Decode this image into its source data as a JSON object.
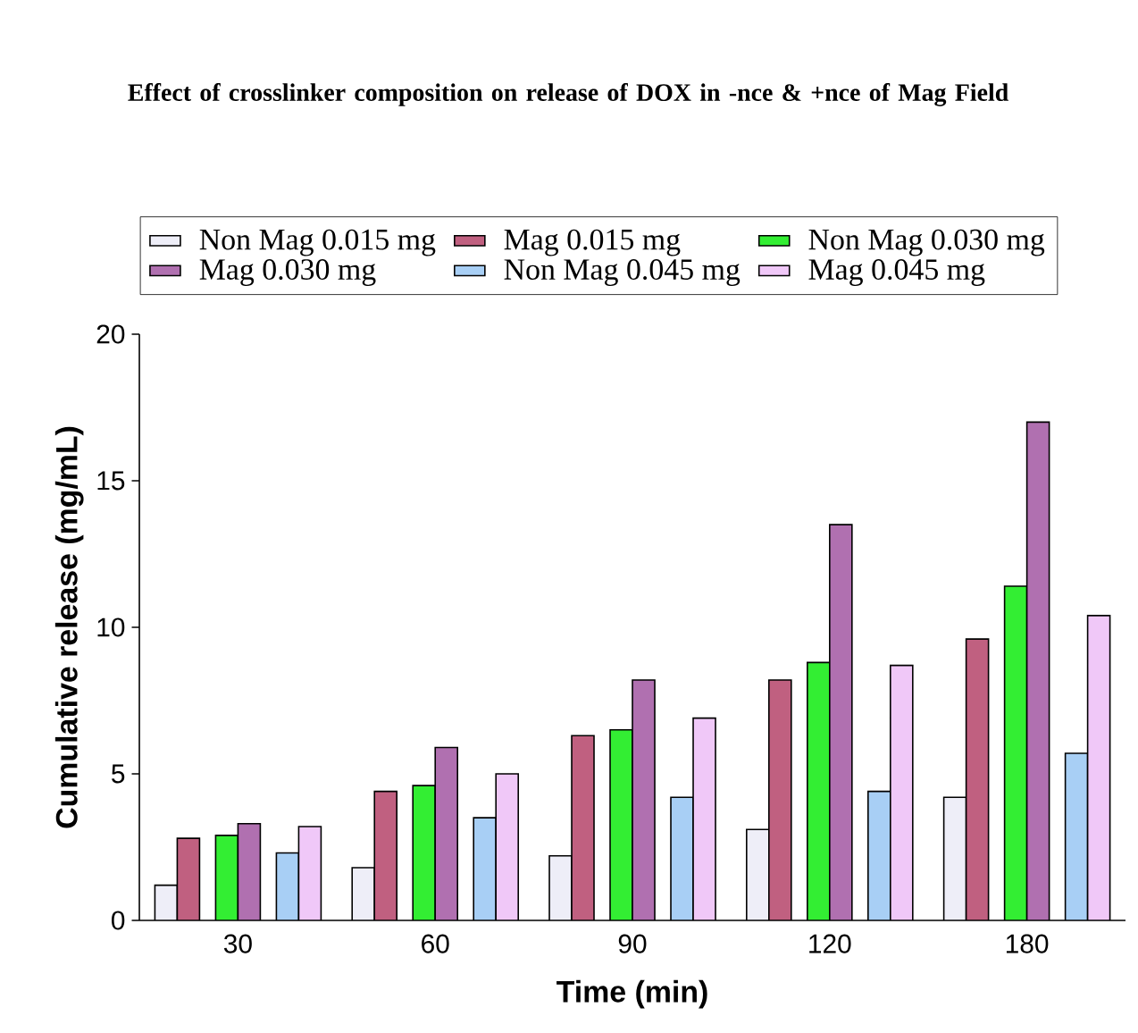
{
  "chart_data": {
    "type": "bar",
    "title": "Effect of crosslinker composition on release of DOX in -nce & +nce of Mag Field",
    "xlabel": "Time (min)",
    "ylabel": "Cumulative release (mg/mL)",
    "categories": [
      "30",
      "60",
      "90",
      "120",
      "180"
    ],
    "series": [
      {
        "name": "Non Mag 0.015 mg",
        "color": "#eeeef8",
        "values": [
          1.2,
          1.8,
          2.2,
          3.1,
          4.2
        ]
      },
      {
        "name": "Mag 0.015 mg",
        "color": "#c06080",
        "values": [
          2.8,
          4.4,
          6.3,
          8.2,
          9.6
        ]
      },
      {
        "name": "Non Mag 0.030 mg",
        "color": "#33ee33",
        "values": [
          2.9,
          4.6,
          6.5,
          8.8,
          11.4
        ]
      },
      {
        "name": "Mag 0.030 mg",
        "color": "#b070b0",
        "values": [
          3.3,
          5.9,
          8.2,
          13.5,
          17.0
        ]
      },
      {
        "name": "Non Mag 0.045 mg",
        "color": "#a8cff5",
        "values": [
          2.3,
          3.5,
          4.2,
          4.4,
          5.7
        ]
      },
      {
        "name": "Mag 0.045 mg",
        "color": "#f0c8f8",
        "values": [
          3.2,
          5.0,
          6.9,
          8.7,
          10.4
        ]
      }
    ],
    "ylim": [
      0,
      20
    ],
    "yticks": [
      0,
      5,
      10,
      15,
      20
    ],
    "grid": false,
    "legend": "top"
  }
}
